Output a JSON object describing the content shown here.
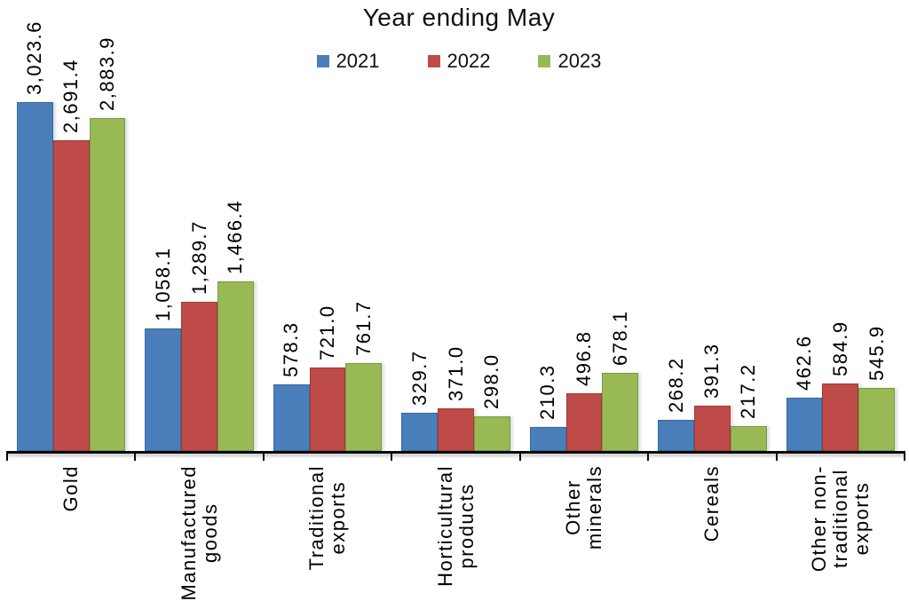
{
  "page": {
    "background": "#ffffff"
  },
  "chart_data": {
    "type": "bar",
    "title": "Year ending May",
    "legend_position": "top",
    "legend_entries": [
      "2021",
      "2022",
      "2023"
    ],
    "data_labels": "rotated 90°, outside end above bars",
    "category_axis_labels": "rotated 90°, below axis",
    "value_axis_visible": false,
    "grid": false,
    "categories": [
      "Gold",
      "Manufactured goods",
      "Traditional exports",
      "Horticultural products",
      "Other minerals",
      "Cereals",
      "Other non-traditional exports"
    ],
    "category_label_lines": [
      [
        "Gold"
      ],
      [
        "Manufactured",
        "goods"
      ],
      [
        "Traditional",
        "exports"
      ],
      [
        "Horticultural",
        "products"
      ],
      [
        "Other",
        "minerals"
      ],
      [
        "Cereals"
      ],
      [
        "Other non-",
        "traditional",
        "exports"
      ]
    ],
    "series": [
      {
        "name": "2021",
        "color": "#4A7EBB",
        "border_color": "#38699E",
        "values": [
          3023.6,
          1058.1,
          578.3,
          329.7,
          210.3,
          268.2,
          462.6
        ]
      },
      {
        "name": "2022",
        "color": "#BE4B48",
        "border_color": "#9E3A38",
        "values": [
          2691.4,
          1289.7,
          721.0,
          371.0,
          496.8,
          391.3,
          584.9
        ]
      },
      {
        "name": "2023",
        "color": "#98B954",
        "border_color": "#79984A",
        "values": [
          2883.9,
          1466.4,
          761.7,
          298.0,
          678.1,
          217.2,
          545.9
        ]
      }
    ],
    "value_labels": [
      [
        "3,023.6",
        "1,058.1",
        "578.3",
        "329.7",
        "210.3",
        "268.2",
        "462.6"
      ],
      [
        "2,691.4",
        "1,289.7",
        "721.0",
        "371.0",
        "496.8",
        "391.3",
        "584.9"
      ],
      [
        "2,883.9",
        "1,466.4",
        "761.7",
        "298.0",
        "678.1",
        "217.2",
        "545.9"
      ]
    ],
    "axis_color": "#0a0a0a"
  }
}
